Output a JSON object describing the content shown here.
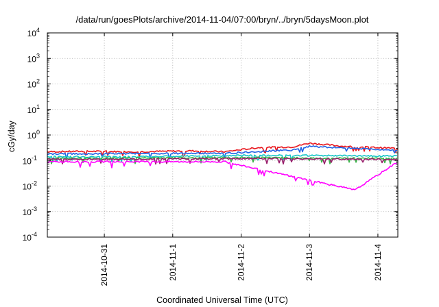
{
  "chart_data": {
    "type": "line",
    "title": "/data/run/goesPlots/archive/2014-11-04/07:00/bryn/../bryn/5daysMoon.plot",
    "xlabel": "Coordinated Universal Time (UTC)",
    "ylabel": "cGy/day",
    "yscale": "log",
    "ylim": [
      0.0001,
      10000
    ],
    "x_range": [
      "2014-10-30T04:00",
      "2014-11-04T07:00"
    ],
    "x_ticks": [
      "2014-10-31",
      "2014-11-1",
      "2014-11-2",
      "2014-11-3",
      "2014-11-4"
    ],
    "y_ticks": [
      {
        "base": "10",
        "exp": "-4"
      },
      {
        "base": "10",
        "exp": "-3"
      },
      {
        "base": "10",
        "exp": "-2"
      },
      {
        "base": "10",
        "exp": "-1"
      },
      {
        "base": "10",
        "exp": "0"
      },
      {
        "base": "10",
        "exp": "1"
      },
      {
        "base": "10",
        "exp": "2"
      },
      {
        "base": "10",
        "exp": "3"
      },
      {
        "base": "10",
        "exp": "4"
      }
    ],
    "grid": true,
    "series": [
      {
        "color": "#e8141b",
        "values_desc": "approx 0.2-0.3, peaks near 0.5 on 2014-11-03",
        "x": [
          "2014-10-30T04:00",
          "2014-10-30T18:00",
          "2014-10-31T12:00",
          "2014-11-01T06:00",
          "2014-11-01T18:00",
          "2014-11-02T06:00",
          "2014-11-02T18:00",
          "2014-11-03T00:00",
          "2014-11-03T12:00",
          "2014-11-04T00:00",
          "2014-11-04T07:00"
        ],
        "y": [
          0.22,
          0.23,
          0.22,
          0.24,
          0.22,
          0.32,
          0.34,
          0.48,
          0.36,
          0.32,
          0.3
        ]
      },
      {
        "color": "#1f63e6",
        "x": [
          "2014-10-30T04:00",
          "2014-10-31T12:00",
          "2014-11-01T18:00",
          "2014-11-02T18:00",
          "2014-11-03T00:00",
          "2014-11-04T07:00"
        ],
        "y": [
          0.18,
          0.19,
          0.19,
          0.26,
          0.36,
          0.25
        ]
      },
      {
        "color": "#16c6c6",
        "x": [
          "2014-10-30T04:00",
          "2014-10-31T12:00",
          "2014-11-02T06:00",
          "2014-11-04T07:00"
        ],
        "y": [
          0.14,
          0.14,
          0.16,
          0.15
        ]
      },
      {
        "color": "#3cb44b",
        "x": [
          "2014-10-30T04:00",
          "2014-11-02T06:00",
          "2014-11-04T07:00"
        ],
        "y": [
          0.12,
          0.13,
          0.12
        ]
      },
      {
        "color": "#9a1f6c",
        "x": [
          "2014-10-30T04:00",
          "2014-11-02T06:00",
          "2014-11-04T07:00"
        ],
        "y": [
          0.11,
          0.12,
          0.11
        ]
      },
      {
        "color": "#ff00ff",
        "x": [
          "2014-10-30T04:00",
          "2014-10-31T12:00",
          "2014-11-01T18:00",
          "2014-11-03T16:00",
          "2014-11-04T07:00"
        ],
        "y": [
          0.09,
          0.09,
          0.09,
          0.007,
          0.09
        ]
      }
    ]
  }
}
